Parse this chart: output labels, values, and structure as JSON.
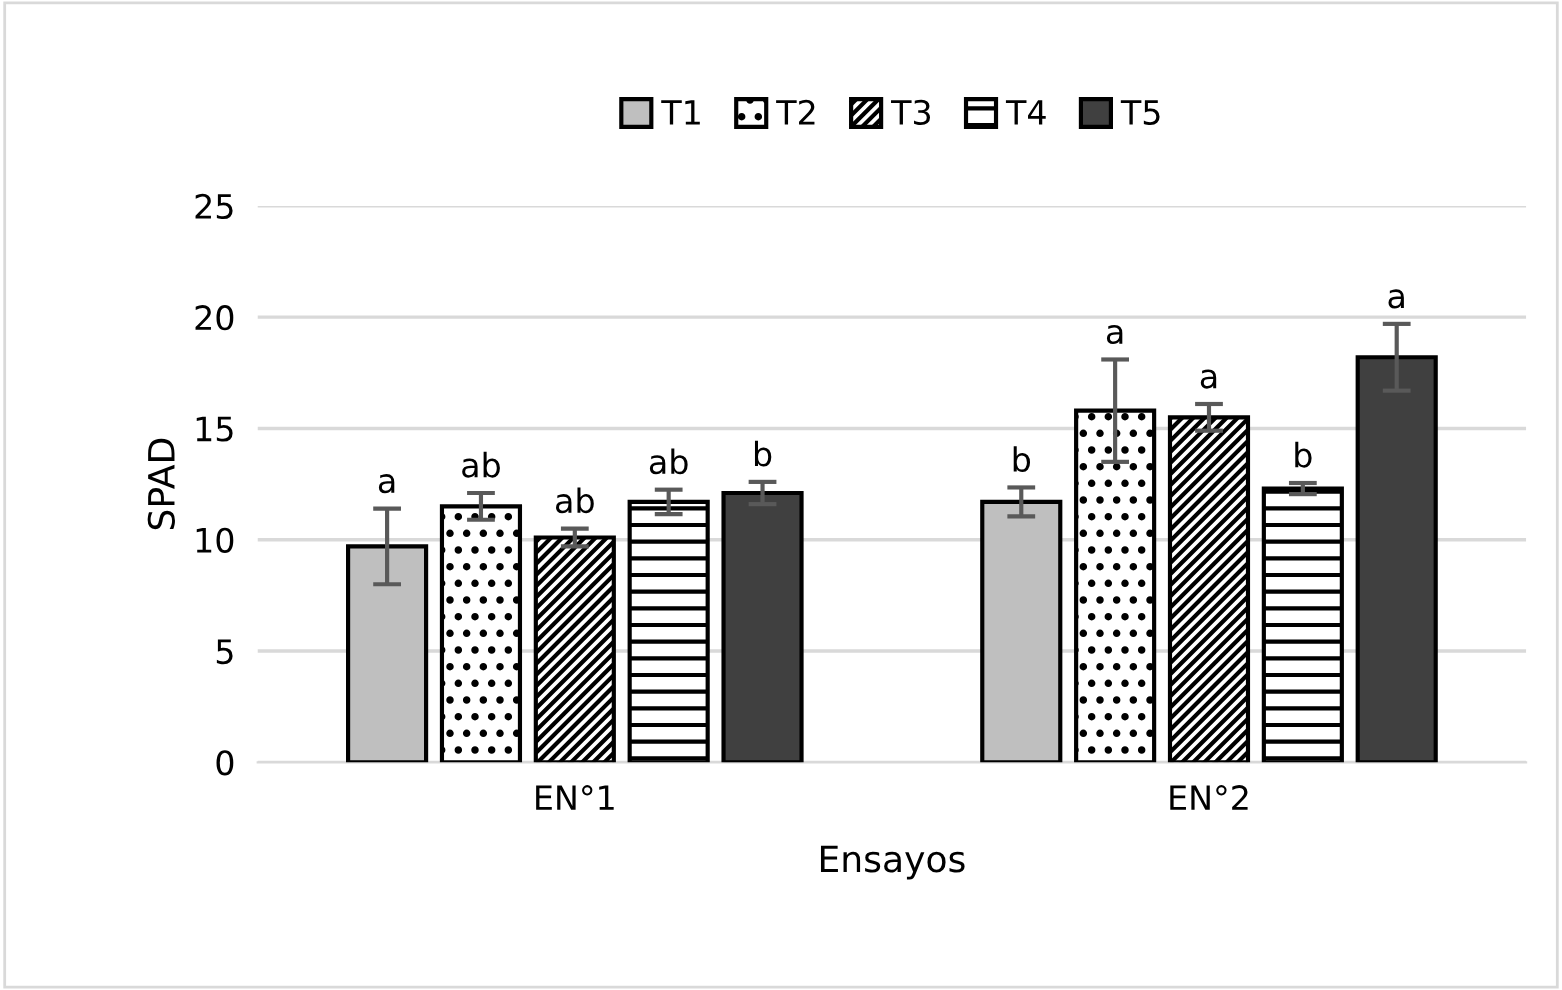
{
  "chart_data": {
    "type": "bar",
    "xlabel": "Ensayos",
    "ylabel": "SPAD",
    "categories": [
      "EN°1",
      "EN°2"
    ],
    "series": [
      {
        "name": "T1",
        "color": "#bfbfbf",
        "values": [
          9.7,
          11.7
        ],
        "errors": [
          1.7,
          0.65
        ],
        "value_labels": [
          "a",
          "b"
        ]
      },
      {
        "name": "T2",
        "color": "#000000",
        "values": [
          11.5,
          15.8
        ],
        "errors": [
          0.6,
          2.3
        ],
        "value_labels": [
          "ab",
          "a"
        ]
      },
      {
        "name": "T3",
        "color": "#000000",
        "values": [
          10.1,
          15.5
        ],
        "errors": [
          0.4,
          0.6
        ],
        "value_labels": [
          "ab",
          "a"
        ]
      },
      {
        "name": "T4",
        "color": "#000000",
        "values": [
          11.7,
          12.3
        ],
        "errors": [
          0.55,
          0.25
        ],
        "value_labels": [
          "ab",
          "b"
        ]
      },
      {
        "name": "T5",
        "color": "#404040",
        "values": [
          12.1,
          18.2
        ],
        "errors": [
          0.5,
          1.5
        ],
        "value_labels": [
          "b",
          "a"
        ]
      }
    ],
    "ylim": [
      0,
      25
    ],
    "yticks": [
      0,
      5,
      10,
      15,
      20,
      25
    ],
    "grid": "y",
    "legend": "top"
  }
}
